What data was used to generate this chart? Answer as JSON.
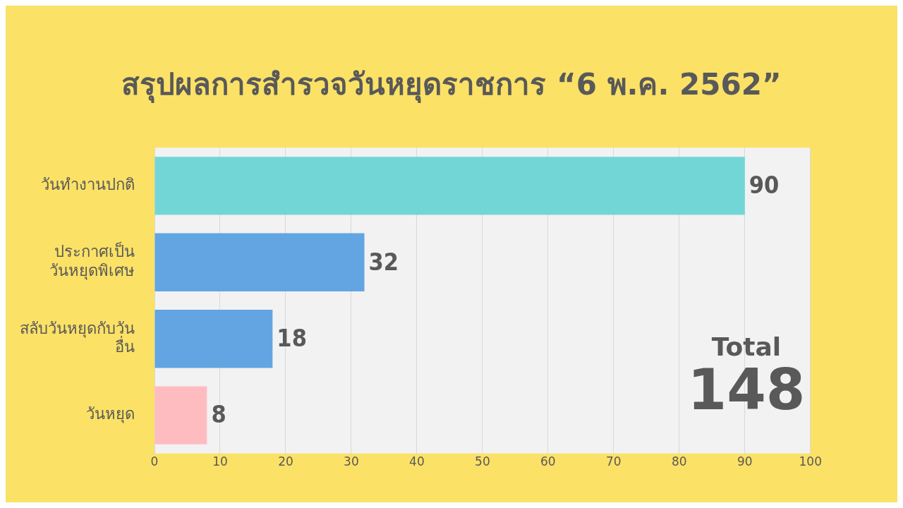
{
  "chart_data": {
    "type": "bar",
    "orientation": "horizontal",
    "title": "สรุปผลการสำรวจวันหยุดราชการ “6 พ.ค. 2562”",
    "categories": [
      "วันทำงานปกติ",
      "ประกาศเป็น\nวันหยุดพิเศษ",
      "สลับวันหยุดกับวัน\nอื่น",
      "วันหยุด"
    ],
    "values": [
      90,
      32,
      18,
      8
    ],
    "colors": [
      "#72d6d6",
      "#63a5e2",
      "#63a5e2",
      "#ffbcc0"
    ],
    "xlim": [
      0,
      100
    ],
    "xticks": [
      0,
      10,
      20,
      30,
      40,
      50,
      60,
      70,
      80,
      90,
      100
    ],
    "grid": "x",
    "legend": false,
    "data_labels": true,
    "annotations": [
      "Total",
      "148"
    ]
  }
}
